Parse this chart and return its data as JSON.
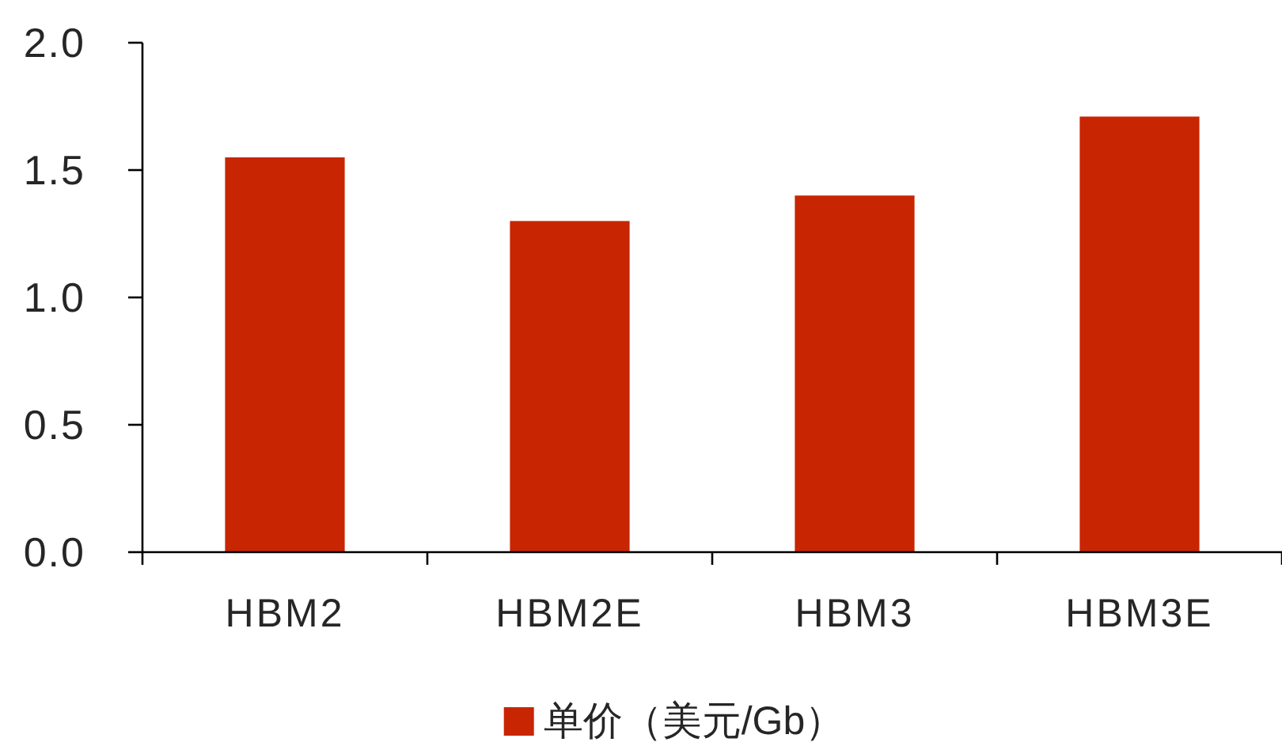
{
  "chart_data": {
    "type": "bar",
    "categories": [
      "HBM2",
      "HBM2E",
      "HBM3",
      "HBM3E"
    ],
    "series": [
      {
        "name": "单价（美元/Gb）",
        "color": "#c82503",
        "values": [
          1.55,
          1.3,
          1.4,
          1.71
        ]
      }
    ],
    "ylim": [
      0,
      2
    ],
    "yticks": [
      {
        "value": 0,
        "label": "0.0"
      },
      {
        "value": 0.5,
        "label": "0.5"
      },
      {
        "value": 1,
        "label": "1.0"
      },
      {
        "value": 1.5,
        "label": "1.5"
      },
      {
        "value": 2,
        "label": "2.0"
      }
    ],
    "grid": false,
    "legend": "bottom"
  }
}
